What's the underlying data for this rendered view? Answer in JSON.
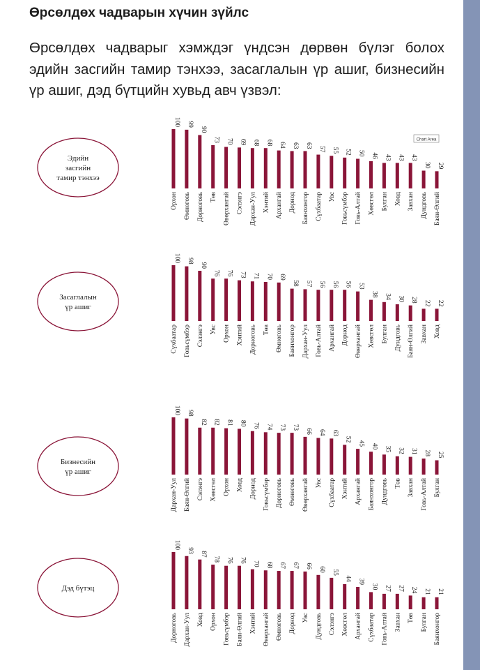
{
  "heading": "Өрсөлдөх чадварын хүчин зүйлс",
  "intro": "Өрсөлдөх чадварыг хэмждэг үндсэн дөрвөн бүлэг болох эдийн засгийн тамир тэнхээ, засаглалын үр ашиг, бизнесийн үр ашиг, дэд бүтцийн хувьд авч үзвэл:",
  "colors": {
    "bar": "#8a1538",
    "ellipse": "#8a1538",
    "sidebar": "#8494b6"
  },
  "chart_tooltip": "Chart Area",
  "chart_data": [
    {
      "type": "bar",
      "panel_label": [
        "Эдийн",
        "засгийн",
        "тамир тэнхээ"
      ],
      "categories": [
        "Орхон",
        "Өмнөговь",
        "Дорноговь",
        "Төв",
        "Өвөрхангай",
        "Сэлэнгэ",
        "Дархан-Уул",
        "Хэнтий",
        "Архангай",
        "Дорнод",
        "Баянхонгор",
        "Сүхбаатар",
        "Увс",
        "Говьсүмбэр",
        "Говь-Алтай",
        "Хөвсгөл",
        "Булган",
        "Ховд",
        "Завхан",
        "Дундговь",
        "Баян-Өлгий"
      ],
      "values": [
        100,
        99,
        90,
        73,
        70,
        69,
        68,
        68,
        64,
        63,
        63,
        57,
        55,
        52,
        50,
        46,
        43,
        43,
        43,
        30,
        29
      ]
    },
    {
      "type": "bar",
      "panel_label": [
        "Засаглалын",
        "үр ашиг"
      ],
      "categories": [
        "Сүхбаатар",
        "Говьсүмбэр",
        "Сэлэнгэ",
        "Увс",
        "Орхон",
        "Хэнтий",
        "Дорноговь",
        "Төв",
        "Өмнөговь",
        "Баянхонгор",
        "Дархан-Уул",
        "Говь-Алтай",
        "Архангай",
        "Дорнод",
        "Өвөрхангай",
        "Хөвсгөл",
        "Булган",
        "Дундговь",
        "Баян-Өлгий",
        "Завхан",
        "Ховд"
      ],
      "values": [
        100,
        98,
        90,
        76,
        76,
        73,
        71,
        70,
        69,
        58,
        57,
        56,
        56,
        56,
        53,
        38,
        34,
        30,
        28,
        22,
        22
      ]
    },
    {
      "type": "bar",
      "panel_label": [
        "Бизнесийн",
        "үр ашиг"
      ],
      "categories": [
        "Дархан-Уул",
        "Баян-Өлгий",
        "Сэлэнгэ",
        "Хөвсгөл",
        "Орхон",
        "Ховд",
        "Дорнод",
        "Говьсүмбэр",
        "Дорноговь",
        "Өмнөговь",
        "Өвөрхангай",
        "Увс",
        "Сүхбаатар",
        "Хэнтий",
        "Архангай",
        "Баянхонгор",
        "Дундговь",
        "Төв",
        "Завхан",
        "Говь-Алтай",
        "Булган"
      ],
      "values": [
        100,
        98,
        82,
        82,
        81,
        80,
        76,
        74,
        73,
        73,
        66,
        64,
        63,
        52,
        45,
        40,
        35,
        32,
        31,
        28,
        25
      ]
    },
    {
      "type": "bar",
      "panel_label": [
        "Дэд бүтэц"
      ],
      "categories": [
        "Дорноговь",
        "Дархан-Уул",
        "Ховд",
        "Орхон",
        "Говьсүмбэр",
        "Баян-Өлгий",
        "Хэнтий",
        "Өвөрхангай",
        "Өмнөговь",
        "Дорнод",
        "Увс",
        "Дундговь",
        "Сэлэнгэ",
        "Хөвсгөл",
        "Архангай",
        "Сүхбаатар",
        "Говь-Алтай",
        "Завхан",
        "Төв",
        "Булган",
        "Баянхонгор"
      ],
      "values": [
        100,
        93,
        87,
        78,
        76,
        76,
        70,
        68,
        67,
        67,
        66,
        60,
        55,
        44,
        39,
        30,
        27,
        27,
        24,
        21,
        21
      ]
    }
  ]
}
